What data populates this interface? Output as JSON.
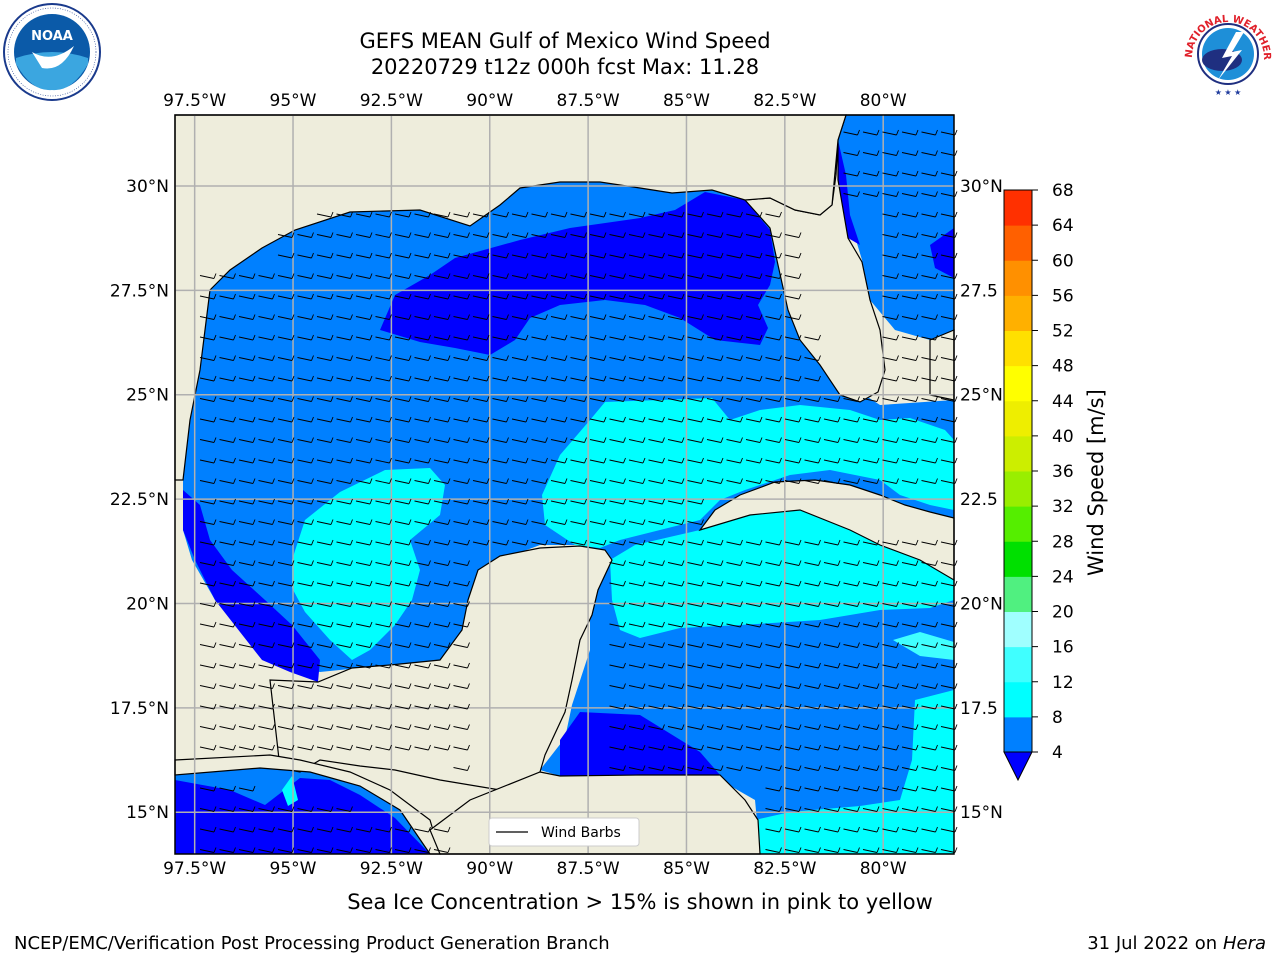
{
  "title": {
    "line1": "GEFS MEAN Gulf of Mexico Wind Speed",
    "line2": "20220729 t12z 000h fcst   Max: 11.28"
  },
  "subtitle": "Sea Ice Concentration > 15% is shown in pink to yellow",
  "footer": {
    "left": "NCEP/EMC/Verification Post Processing Product Generation Branch",
    "right_date": "31 Jul 2022 on ",
    "right_machine": "Hera"
  },
  "axes": {
    "lon_labels": [
      "97.5°W",
      "95°W",
      "92.5°W",
      "90°W",
      "87.5°W",
      "85°W",
      "82.5°W",
      "80°W"
    ],
    "lat_labels": [
      "30°N",
      "27.5°N",
      "25°N",
      "22.5°N",
      "20°N",
      "17.5°N",
      "15°N"
    ],
    "lat_labels_right": [
      "30°N",
      "27.5",
      "25°N",
      "22.5",
      "20°N",
      "17.5",
      "15°N"
    ],
    "lon_values": [
      -97.5,
      -95,
      -92.5,
      -90,
      -87.5,
      -85,
      -82.5,
      -80
    ],
    "lat_values": [
      30,
      27.5,
      25,
      22.5,
      20,
      17.5,
      15
    ],
    "lon_range": [
      -98,
      -78.2
    ],
    "lat_range": [
      14.0,
      31.7
    ],
    "grid": true
  },
  "legend": {
    "label": "Wind Barbs",
    "placement": "bottom-center"
  },
  "colorbar": {
    "label": "Wind Speed [m/s]",
    "ticks": [
      "68",
      "64",
      "60",
      "56",
      "52",
      "48",
      "44",
      "40",
      "36",
      "32",
      "28",
      "24",
      "20",
      "16",
      "12",
      "8",
      "4"
    ],
    "levels": [
      4,
      8,
      12,
      16,
      20,
      24,
      28,
      32,
      36,
      40,
      44,
      48,
      52,
      56,
      60,
      64,
      68
    ],
    "colors": [
      "#0080ff",
      "#00ffff",
      "#40ffff",
      "#a0ffff",
      "#50f080",
      "#00e000",
      "#55ee00",
      "#99ee00",
      "#ccee00",
      "#eeee00",
      "#ffff00",
      "#ffe000",
      "#ffb000",
      "#ff9000",
      "#ff6000",
      "#ff3000",
      "#ff0000"
    ],
    "under_color": "#0000ff",
    "extend": "min"
  },
  "colors": {
    "land": "#eeeddc",
    "below_4": "#0000ff",
    "4_8": "#0080ff",
    "8_12": "#00ffff",
    "12_16": "#40ffff",
    "grid": "#b0b0b0"
  },
  "logos": {
    "noaa_text": "NOAA",
    "nws_text": "NATIONAL WEATHER SERVICE"
  }
}
